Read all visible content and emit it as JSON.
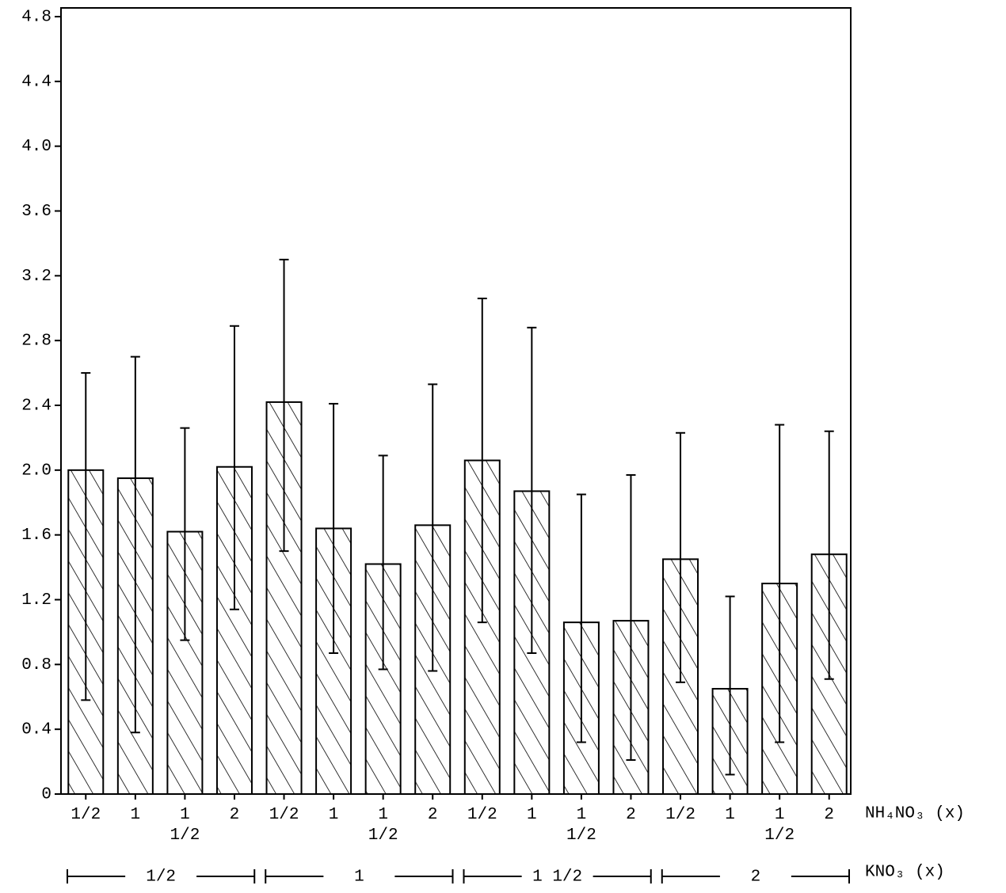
{
  "chart_data": {
    "type": "bar",
    "categories": [
      "1/2",
      "1",
      "1 1/2",
      "2",
      "1/2",
      "1",
      "1 1/2",
      "2",
      "1/2",
      "1",
      "1 1/2",
      "2",
      "1/2",
      "1",
      "1 1/2",
      "2"
    ],
    "values": [
      2.0,
      1.95,
      1.62,
      2.02,
      2.42,
      1.64,
      1.42,
      1.66,
      2.06,
      1.87,
      1.06,
      1.07,
      1.45,
      0.65,
      1.3,
      1.48
    ],
    "error_upper": [
      2.6,
      2.7,
      2.26,
      2.89,
      3.3,
      2.41,
      2.09,
      2.53,
      3.06,
      2.88,
      1.85,
      1.97,
      2.23,
      1.22,
      2.28,
      2.24
    ],
    "error_lower": [
      0.58,
      0.38,
      0.95,
      1.14,
      1.5,
      0.87,
      0.77,
      0.76,
      1.06,
      0.87,
      0.32,
      0.21,
      0.69,
      0.12,
      0.32,
      0.71
    ],
    "groups": [
      "1/2",
      "1",
      "1 1/2",
      "2"
    ],
    "x_label": "NH₄NO₃ (x)",
    "group_label": "KNO₃ (x)",
    "color": "#000000",
    "ylim": [
      0,
      4.8
    ],
    "yticks": [
      0,
      0.4,
      0.8,
      1.2,
      1.6,
      {
        "value": 2,
        "label": "2.0"
      },
      2.4,
      2.8,
      3.2,
      3.6,
      {
        "value": 4,
        "label": "4.0"
      },
      4.4,
      4.8
    ]
  }
}
